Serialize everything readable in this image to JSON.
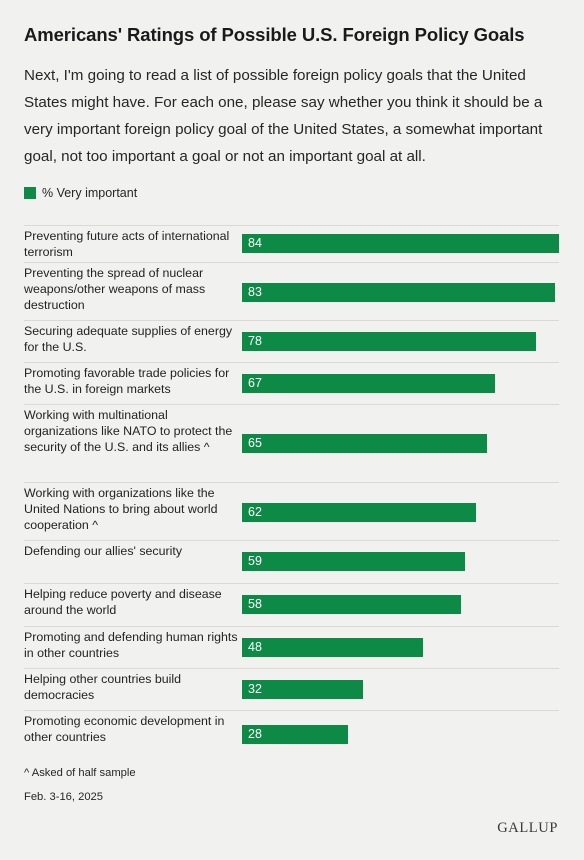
{
  "title": "Americans' Ratings of Possible U.S. Foreign Policy Goals",
  "subtitle": "Next, I'm going to read a list of possible foreign policy goals that the United States might have. For each one, please say whether you think it should be a very important foreign policy goal of the United States, a somewhat important goal, not too important a goal or not an important goal at all.",
  "footnote": "^ Asked of half sample",
  "date": "Feb. 3-16, 2025",
  "logo": "GALLUP",
  "colors": {
    "bar": "#0d8a46",
    "background": "#f1f1ef"
  },
  "chart_data": {
    "type": "bar",
    "orientation": "horizontal",
    "legend": "% Very important",
    "legend_position": "top-left",
    "xlim": [
      0,
      84
    ],
    "categories": [
      "Preventing future acts of international terrorism",
      "Preventing the spread of nuclear weapons/other weapons of mass destruction",
      "Securing adequate supplies of energy for the U.S.",
      "Promoting favorable trade policies for the U.S. in foreign markets",
      "Working with multinational organizations like NATO to protect the security of the U.S. and its allies ^",
      "Working with organizations like the United Nations to bring about world cooperation ^",
      "Defending our allies' security",
      "Helping reduce poverty and disease around the world",
      "Promoting and defending human rights in other countries",
      "Helping other countries build democracies",
      "Promoting economic development in other countries"
    ],
    "series": [
      {
        "name": "% Very important",
        "values": [
          84,
          83,
          78,
          67,
          65,
          62,
          59,
          58,
          48,
          32,
          28
        ]
      }
    ]
  }
}
